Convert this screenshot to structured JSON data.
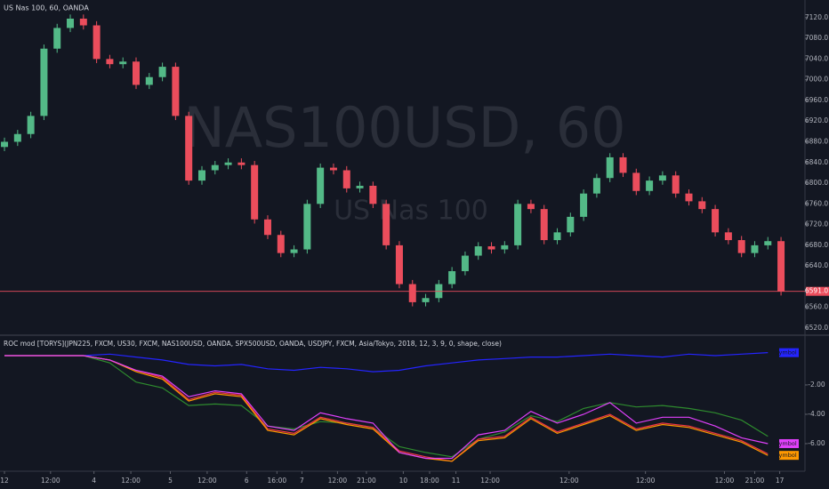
{
  "chart_data": [
    {
      "type": "candlestick",
      "title": "US Nas 100, 60, OANDA",
      "watermark": "NAS100USD, 60",
      "watermark_subtitle": "US Nas 100",
      "up_color": "#53b987",
      "down_color": "#eb4d5c",
      "xlim": [
        -0.34,
        60.82
      ],
      "ylim": [
        6508,
        7154
      ],
      "yticks": [
        {
          "value": 7120,
          "label": "7120.0"
        },
        {
          "value": 7080,
          "label": "7080.0"
        },
        {
          "value": 7040,
          "label": "7040.0"
        },
        {
          "value": 7000,
          "label": "7000.0"
        },
        {
          "value": 6960,
          "label": "6960.0"
        },
        {
          "value": 6920,
          "label": "6920.0"
        },
        {
          "value": 6880,
          "label": "6880.0"
        },
        {
          "value": 6840,
          "label": "6840.0"
        },
        {
          "value": 6800,
          "label": "6800.0"
        },
        {
          "value": 6760,
          "label": "6760.0"
        },
        {
          "value": 6720,
          "label": "6720.0"
        },
        {
          "value": 6680,
          "label": "6680.0"
        },
        {
          "value": 6640,
          "label": "6640.0"
        },
        {
          "value": 6560,
          "label": "6560.0"
        },
        {
          "value": 6520,
          "label": "6520.0"
        }
      ],
      "last_price": {
        "value": 6591,
        "label": "6591.0"
      },
      "xticks": [
        {
          "value": 0,
          "label": "12"
        },
        {
          "value": 3.5,
          "label": "12:00"
        },
        {
          "value": 6.8,
          "label": "4"
        },
        {
          "value": 9.6,
          "label": "12:00"
        },
        {
          "value": 12.6,
          "label": "5"
        },
        {
          "value": 15.4,
          "label": "12:00"
        },
        {
          "value": 18.4,
          "label": "6"
        },
        {
          "value": 20.7,
          "label": "16:00"
        },
        {
          "value": 22.6,
          "label": "7"
        },
        {
          "value": 25.3,
          "label": "12:00"
        },
        {
          "value": 27.5,
          "label": "21:00"
        },
        {
          "value": 30.3,
          "label": "10"
        },
        {
          "value": 32.3,
          "label": "18:00"
        },
        {
          "value": 34.3,
          "label": "11"
        },
        {
          "value": 36.9,
          "label": "12:00"
        },
        {
          "value": 42.9,
          "label": "12:00"
        },
        {
          "value": 48.7,
          "label": "12:00"
        },
        {
          "value": 54.7,
          "label": "12:00"
        },
        {
          "value": 57,
          "label": "21:00"
        },
        {
          "value": 58.9,
          "label": "17"
        }
      ],
      "open": [
        6870,
        6880,
        6895,
        6930,
        7060,
        7100,
        7118,
        7105,
        7040,
        7030,
        7035,
        6990,
        7005,
        7025,
        6930,
        6805,
        6825,
        6835,
        6840,
        6835,
        6730,
        6700,
        6665,
        6672,
        6760,
        6830,
        6825,
        6790,
        6795,
        6760,
        6680,
        6605,
        6570,
        6578,
        6605,
        6630,
        6660,
        6678,
        6672,
        6680,
        6760,
        6750,
        6690,
        6705,
        6735,
        6780,
        6810,
        6850,
        6820,
        6785,
        6805,
        6815,
        6780,
        6765,
        6750,
        6705,
        6690,
        6665,
        6680,
        6688
      ],
      "high": [
        6888,
        6903,
        6938,
        7068,
        7108,
        7126,
        7126,
        7113,
        7048,
        7043,
        7043,
        7013,
        7033,
        7033,
        6938,
        6833,
        6843,
        6848,
        6848,
        6843,
        6738,
        6708,
        6680,
        6768,
        6838,
        6838,
        6833,
        6803,
        6803,
        6768,
        6688,
        6613,
        6586,
        6613,
        6638,
        6668,
        6686,
        6686,
        6688,
        6768,
        6768,
        6758,
        6713,
        6743,
        6788,
        6818,
        6858,
        6858,
        6828,
        6813,
        6823,
        6823,
        6788,
        6773,
        6758,
        6713,
        6698,
        6688,
        6696,
        6696
      ],
      "low": [
        6862,
        6872,
        6887,
        6922,
        7052,
        7092,
        7097,
        7032,
        7022,
        7022,
        6982,
        6982,
        6997,
        6922,
        6797,
        6797,
        6817,
        6827,
        6827,
        6722,
        6692,
        6657,
        6657,
        6664,
        6752,
        6817,
        6782,
        6782,
        6752,
        6672,
        6597,
        6562,
        6562,
        6570,
        6597,
        6622,
        6652,
        6664,
        6664,
        6672,
        6742,
        6682,
        6682,
        6697,
        6727,
        6772,
        6802,
        6812,
        6777,
        6777,
        6797,
        6772,
        6757,
        6742,
        6697,
        6682,
        6657,
        6657,
        6672,
        6583
      ],
      "close": [
        6880,
        6895,
        6930,
        7060,
        7100,
        7118,
        7105,
        7040,
        7030,
        7035,
        6990,
        7005,
        7025,
        6930,
        6805,
        6825,
        6835,
        6840,
        6835,
        6730,
        6700,
        6665,
        6672,
        6760,
        6830,
        6825,
        6790,
        6795,
        6760,
        6680,
        6605,
        6570,
        6578,
        6605,
        6630,
        6660,
        6678,
        6672,
        6680,
        6760,
        6750,
        6690,
        6705,
        6735,
        6780,
        6810,
        6850,
        6820,
        6785,
        6805,
        6815,
        6780,
        6765,
        6750,
        6705,
        6690,
        6665,
        6680,
        6688,
        6591
      ]
    },
    {
      "type": "line",
      "title": "ROC mod [TORYS](JPN225, FXCM, US30, FXCM, NAS100USD, OANDA, SPX500USD, OANDA, USDJPY, FXCM, Asia/Tokyo, 2018, 12, 3, 9, 0, shape, close)",
      "xlim": [
        -0.34,
        60.82
      ],
      "ylim": [
        -7.88,
        1.33
      ],
      "yticks": [
        {
          "value": -2,
          "label": "-2.00"
        },
        {
          "value": -4,
          "label": "-4.00"
        },
        {
          "value": -6,
          "label": "-6.00"
        }
      ],
      "x": [
        0,
        2,
        4,
        6,
        8,
        10,
        12,
        14,
        16,
        18,
        20,
        22,
        24,
        26,
        28,
        30,
        32,
        34,
        36,
        38,
        40,
        42,
        44,
        46,
        48,
        50,
        52,
        54,
        56,
        58
      ],
      "series": [
        {
          "name": "symbol 5",
          "color": "#2424ff",
          "values": [
            0,
            0,
            0,
            0,
            0.1,
            -0.1,
            -0.3,
            -0.6,
            -0.7,
            -0.6,
            -0.9,
            -1.0,
            -0.8,
            -0.9,
            -1.1,
            -1.0,
            -0.7,
            -0.5,
            -0.3,
            -0.2,
            -0.1,
            -0.1,
            0.0,
            0.1,
            0.0,
            -0.1,
            0.1,
            0.0,
            0.1,
            0.2
          ]
        },
        {
          "color": "#2e8b2e",
          "values": [
            0,
            0,
            0,
            0,
            -0.5,
            -1.8,
            -2.2,
            -3.4,
            -3.3,
            -3.4,
            -4.8,
            -5.0,
            -4.5,
            -4.6,
            -4.9,
            -6.2,
            -6.6,
            -6.9,
            -5.7,
            -5.2,
            -4.1,
            -4.5,
            -3.6,
            -3.2,
            -3.5,
            -3.4,
            -3.6,
            -3.9,
            -4.4,
            -5.5
          ]
        },
        {
          "color": "#f23645",
          "values": [
            0,
            0,
            0,
            0,
            -0.3,
            -1.0,
            -1.5,
            -3.0,
            -2.5,
            -2.7,
            -5.0,
            -5.3,
            -4.2,
            -4.6,
            -4.9,
            -6.5,
            -6.9,
            -7.2,
            -5.7,
            -5.5,
            -4.2,
            -5.2,
            -4.6,
            -4.0,
            -5.0,
            -4.6,
            -4.8,
            -5.3,
            -5.8,
            -6.7
          ]
        },
        {
          "name": "symbol 4",
          "color": "#ff9800",
          "values": [
            0,
            0,
            0,
            0,
            -0.3,
            -1.1,
            -1.6,
            -3.1,
            -2.6,
            -2.8,
            -5.1,
            -5.4,
            -4.3,
            -4.7,
            -5.0,
            -6.6,
            -7.0,
            -7.2,
            -5.8,
            -5.6,
            -4.3,
            -5.3,
            -4.7,
            -4.1,
            -5.1,
            -4.7,
            -4.9,
            -5.4,
            -5.9,
            -6.8
          ]
        },
        {
          "name": "symbol 1",
          "color": "#e040fb",
          "values": [
            0,
            0,
            0,
            0,
            -0.3,
            -1.0,
            -1.4,
            -2.8,
            -2.4,
            -2.6,
            -4.8,
            -5.1,
            -3.9,
            -4.3,
            -4.6,
            -6.6,
            -7.0,
            -7.0,
            -5.4,
            -5.1,
            -3.8,
            -4.6,
            -4.0,
            -3.2,
            -4.6,
            -4.2,
            -4.2,
            -4.8,
            -5.6,
            -6.0
          ]
        }
      ]
    }
  ]
}
